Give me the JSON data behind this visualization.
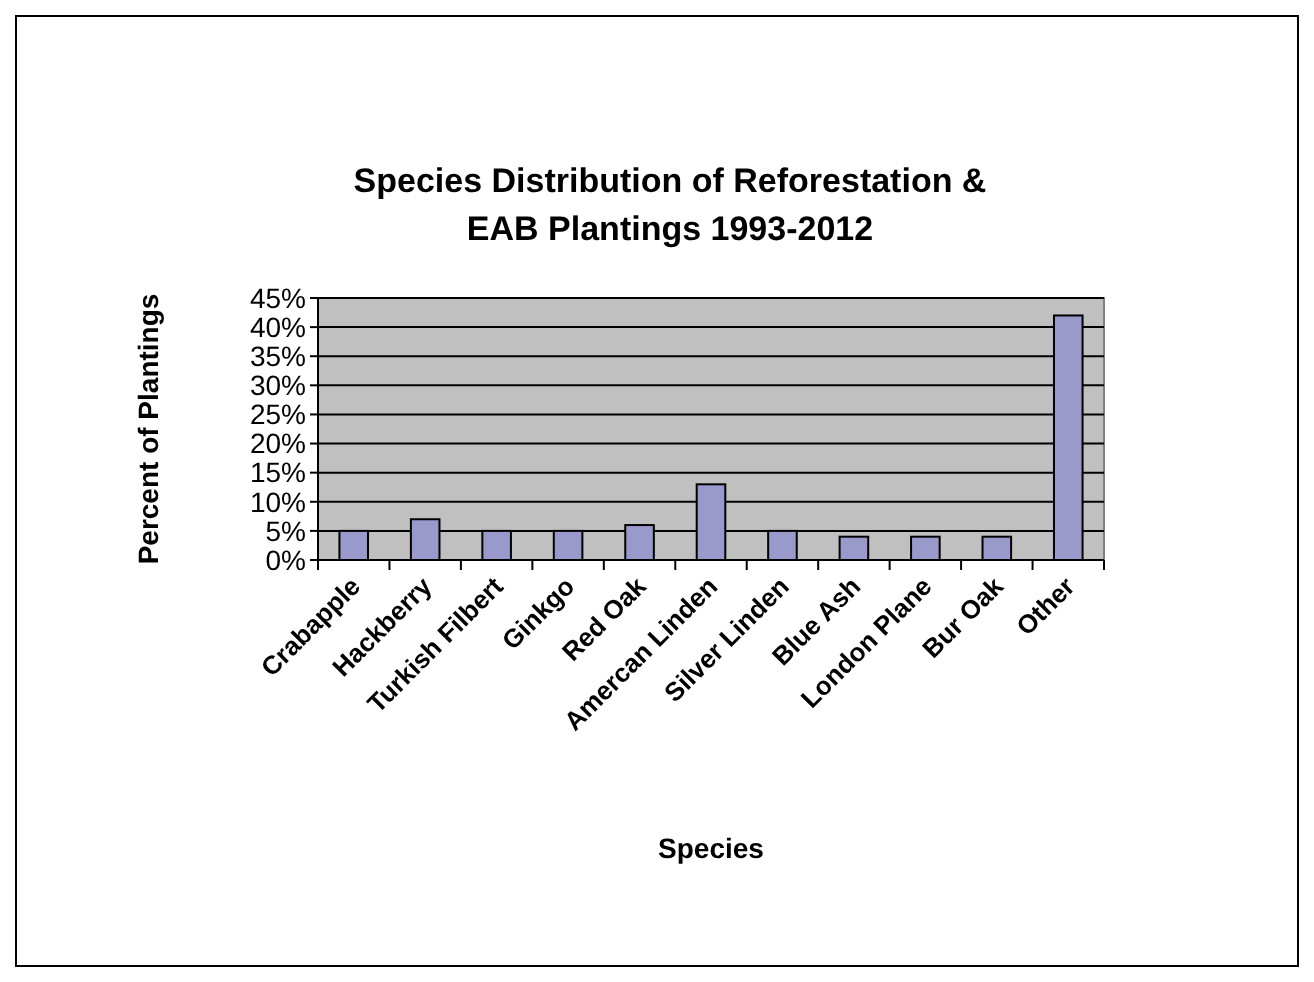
{
  "chart_data": {
    "type": "bar",
    "title": "Species Distribution of Reforestation & EAB Plantings 1993-2012",
    "xlabel": "Species",
    "ylabel": "Percent of Plantings",
    "categories": [
      "Crabapple",
      "Hackberry",
      "Turkish Filbert",
      "Ginkgo",
      "Red Oak",
      "Amercan Linden",
      "Silver Linden",
      "Blue Ash",
      "London Plane",
      "Bur Oak",
      "Other"
    ],
    "values": [
      5,
      7,
      5,
      5,
      6,
      13,
      5,
      4,
      4,
      4,
      42
    ],
    "color": "#9999cc",
    "ylim": [
      0,
      45
    ],
    "yticks": [
      {
        "value": 0,
        "label": "0%"
      },
      {
        "value": 5,
        "label": "5%"
      },
      {
        "value": 10,
        "label": "10%"
      },
      {
        "value": 15,
        "label": "15%"
      },
      {
        "value": 20,
        "label": "20%"
      },
      {
        "value": 25,
        "label": "25%"
      },
      {
        "value": 30,
        "label": "30%"
      },
      {
        "value": 35,
        "label": "35%"
      },
      {
        "value": 40,
        "label": "40%"
      },
      {
        "value": 45,
        "label": "45%"
      }
    ],
    "grid": "y"
  }
}
